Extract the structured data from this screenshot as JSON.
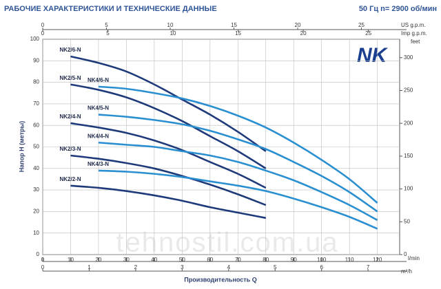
{
  "chart_data": {
    "type": "line",
    "title": "РАБОЧИЕ ХАРАКТЕРИСТИКИ И ТЕХНИЧЕСКИЕ ДАННЫЕ",
    "subtitle": "50 Гц   n= 2900 об/мин",
    "logo": "NK",
    "watermark": "tehnostil.com.ua",
    "y_label": "Напор Н (метры)",
    "x_label": "Производительность Q",
    "x_unit": "l/min",
    "xlim": [
      0,
      128
    ],
    "xticks": [
      0,
      10,
      20,
      30,
      40,
      50,
      60,
      70,
      80,
      90,
      100,
      110,
      120
    ],
    "ylim": [
      0,
      100
    ],
    "yticks": [
      0,
      10,
      20,
      30,
      40,
      50,
      60,
      70,
      80,
      90,
      100
    ],
    "y2_unit": "feet",
    "y2lim": [
      0,
      328.08
    ],
    "y2ticks": [
      0,
      50,
      100,
      150,
      200,
      250,
      300
    ],
    "grid": true,
    "secondary_x_axes": [
      {
        "unit": "m³/h",
        "xlim": [
          0,
          7.68
        ],
        "xticks": [
          0,
          1,
          2,
          3,
          4,
          5,
          6,
          7
        ]
      },
      {
        "unit": "US g.p.m.",
        "xlim": [
          0,
          28
        ],
        "xticks": [
          0,
          5,
          10,
          15,
          20,
          25
        ]
      },
      {
        "unit": "Imp g.p.m.",
        "xlim": [
          0,
          27.4
        ],
        "xticks": [
          0,
          5,
          10,
          15,
          20,
          25
        ]
      }
    ],
    "series": [
      {
        "name": "NK2/6-N",
        "color": "#1f3a7a",
        "x": [
          10,
          20,
          30,
          40,
          50,
          60,
          70,
          80
        ],
        "values": [
          92,
          89,
          85,
          79,
          72,
          65,
          57,
          48
        ]
      },
      {
        "name": "NK2/5-N",
        "color": "#1f3a7a",
        "x": [
          10,
          20,
          30,
          40,
          50,
          60,
          70,
          80
        ],
        "values": [
          79,
          76.5,
          73,
          68,
          62,
          55,
          48,
          40
        ]
      },
      {
        "name": "NK2/4-N",
        "color": "#1f3a7a",
        "x": [
          10,
          20,
          30,
          40,
          50,
          60,
          70,
          80
        ],
        "values": [
          61,
          59,
          56.5,
          53,
          48.5,
          43,
          37.5,
          31
        ]
      },
      {
        "name": "NK2/3-N",
        "color": "#1f3a7a",
        "x": [
          10,
          20,
          30,
          40,
          50,
          60,
          70,
          80
        ],
        "values": [
          46,
          44.5,
          42.5,
          40,
          36.5,
          32.5,
          28,
          23
        ]
      },
      {
        "name": "NK2/2-N",
        "color": "#1f3a7a",
        "x": [
          10,
          20,
          30,
          40,
          50,
          60,
          70,
          80
        ],
        "values": [
          32,
          31,
          29.5,
          27.5,
          25,
          22,
          19.5,
          17
        ]
      },
      {
        "name": "NK4/6-N",
        "color": "#2a8fd0",
        "x": [
          20,
          30,
          40,
          50,
          60,
          70,
          80,
          90,
          100,
          110,
          120
        ],
        "values": [
          78,
          77,
          75,
          72.5,
          69,
          64.5,
          59,
          52,
          44,
          35,
          24
        ]
      },
      {
        "name": "NK4/5-N",
        "color": "#2a8fd0",
        "x": [
          20,
          30,
          40,
          50,
          60,
          70,
          80,
          90,
          100,
          110,
          120
        ],
        "values": [
          65,
          64,
          62.5,
          60.5,
          57.5,
          53.5,
          49,
          43,
          36.5,
          29,
          20
        ]
      },
      {
        "name": "NK4/4-N",
        "color": "#2a8fd0",
        "x": [
          20,
          30,
          40,
          50,
          60,
          70,
          80,
          90,
          100,
          110,
          120
        ],
        "values": [
          52,
          51,
          50,
          48,
          46,
          43,
          39,
          34.5,
          29,
          23,
          16
        ]
      },
      {
        "name": "NK4/3-N",
        "color": "#2a8fd0",
        "x": [
          20,
          30,
          40,
          50,
          60,
          70,
          80,
          90,
          100,
          110,
          120
        ],
        "values": [
          39,
          38.5,
          37.5,
          36,
          34,
          32,
          29.5,
          26,
          22,
          17.5,
          12
        ]
      }
    ]
  }
}
